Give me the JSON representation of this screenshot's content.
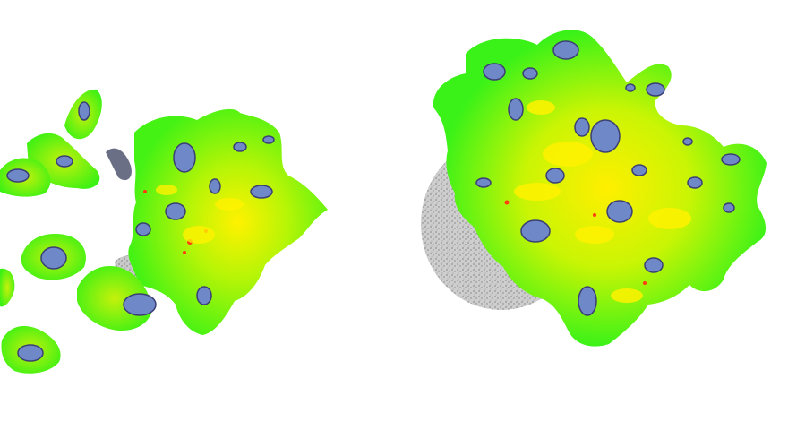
{
  "image": {
    "description_kind": "false-color plant canopy heat map",
    "background_color": "#ffffff",
    "palette": {
      "low": "#6f88c8",
      "low_dark": "#3b3f73",
      "mid": "#7ef21a",
      "mid_bright": "#22ff11",
      "high": "#fff200",
      "peak": "#ff3a10",
      "pot_soil": "#9c9c9c"
    }
  },
  "plants": [
    {
      "name": "left-plant"
    },
    {
      "name": "right-plant"
    }
  ]
}
